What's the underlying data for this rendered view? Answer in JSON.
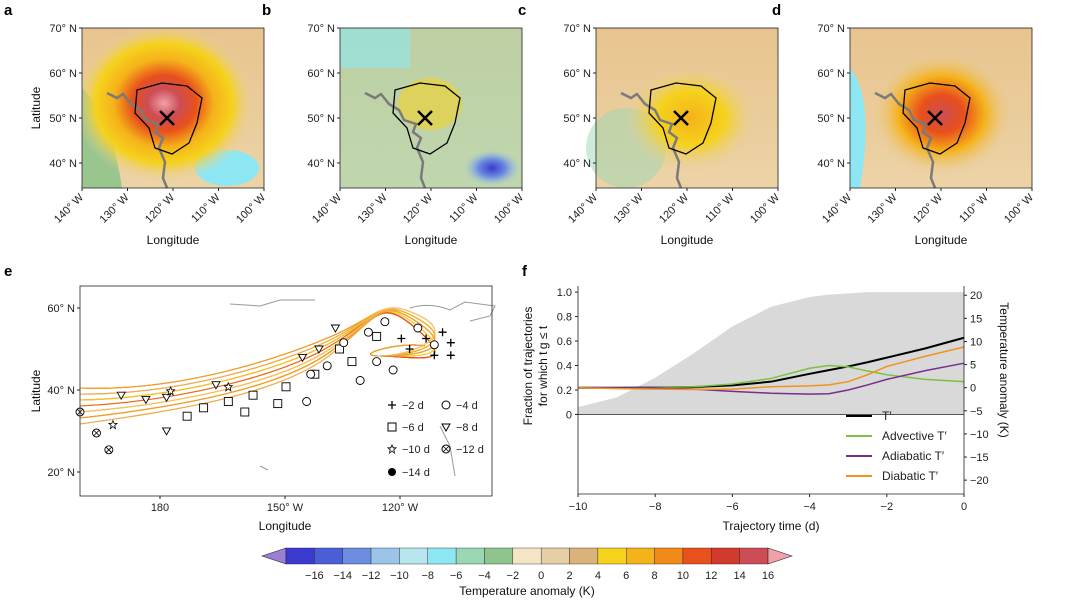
{
  "panels": {
    "map_tiles": [
      {
        "letter": "a",
        "yticks": [
          "70° N",
          "60° N",
          "50° N",
          "40° N"
        ],
        "xticks": [
          "140° W",
          "130° W",
          "120° W",
          "110° W",
          "100° W"
        ],
        "ylabel": "Latitude",
        "xlabel": "Longitude"
      },
      {
        "letter": "b",
        "yticks": [
          "70° N",
          "60° N",
          "50° N",
          "40° N"
        ],
        "xticks": [
          "140° W",
          "130° W",
          "120° W",
          "110° W",
          "100° W"
        ],
        "ylabel": "",
        "xlabel": "Longitude"
      },
      {
        "letter": "c",
        "yticks": [
          "70° N",
          "60° N",
          "50° N",
          "40° N"
        ],
        "xticks": [
          "140° W",
          "130° W",
          "120° W",
          "110° W",
          "100° W"
        ],
        "ylabel": "",
        "xlabel": "Longitude"
      },
      {
        "letter": "d",
        "yticks": [
          "70° N",
          "60° N",
          "50° N",
          "40° N"
        ],
        "xticks": [
          "140° W",
          "130° W",
          "120° W",
          "110° W",
          "100° W"
        ],
        "ylabel": "",
        "xlabel": "Longitude"
      }
    ],
    "e": {
      "letter": "e",
      "yticks": [
        "60° N",
        "40° N",
        "20° N"
      ],
      "xticks": [
        "180",
        "150° W",
        "120° W"
      ],
      "ylabel": "Latitude",
      "xlabel": "Longitude",
      "legend": [
        {
          "symbol": "plus",
          "label": "−2 d"
        },
        {
          "symbol": "circle",
          "label": "−4 d"
        },
        {
          "symbol": "square",
          "label": "−6 d"
        },
        {
          "symbol": "triangle-down",
          "label": "−8 d"
        },
        {
          "symbol": "star",
          "label": "−10 d"
        },
        {
          "symbol": "circle-x",
          "label": "−12 d"
        },
        {
          "symbol": "filled-circle",
          "label": "−14 d"
        }
      ]
    },
    "f": {
      "letter": "f"
    }
  },
  "colorbar": {
    "ticks": [
      "−16",
      "−14",
      "−12",
      "−10",
      "−8",
      "−6",
      "−4",
      "−2",
      "0",
      "2",
      "4",
      "6",
      "8",
      "10",
      "12",
      "14",
      "16"
    ],
    "label": "Temperature anomaly (K)",
    "colors": [
      "#9b7fd4",
      "#3a3acf",
      "#4a5ed8",
      "#6d8ee0",
      "#9cc3ea",
      "#b8e6ef",
      "#8de7f2",
      "#9ad8b4",
      "#8fc48c",
      "#f4e6c4",
      "#e6cfa4",
      "#d9b37a",
      "#f5d21c",
      "#f5b21a",
      "#f28a1a",
      "#e8501c",
      "#d13a2c",
      "#cc4d55",
      "#f0a0a8"
    ]
  },
  "chart_data": [
    {
      "type": "line",
      "panel": "f",
      "xlabel": "Trajectory time (d)",
      "ylabel_left": "Fraction of trajectories for which t_g ≤ t",
      "ylabel_right": "Temperature anomaly (K)",
      "xlim": [
        -10,
        0
      ],
      "xticks": [
        -10,
        -8,
        -6,
        -4,
        -2,
        0
      ],
      "ylim_left": [
        -0.65,
        1.05
      ],
      "yticks_left": [
        0,
        0.2,
        0.4,
        0.6,
        0.8,
        1.0
      ],
      "ylim_right": [
        -23,
        22
      ],
      "yticks_right": [
        20,
        15,
        10,
        5,
        0,
        -5,
        -10,
        -15,
        -20
      ],
      "x": [
        -10,
        -9,
        -8,
        -7,
        -6,
        -5,
        -4,
        -3.5,
        -3,
        -2.5,
        -2,
        -1,
        0
      ],
      "fraction_area": [
        0.06,
        0.14,
        0.3,
        0.5,
        0.72,
        0.88,
        0.96,
        0.98,
        0.99,
        1.0,
        1.0,
        1.0,
        1.0
      ],
      "series": [
        {
          "name": "T′",
          "color": "#000000",
          "values": [
            0.0,
            0.0,
            0.05,
            0.15,
            0.5,
            1.3,
            3.0,
            3.8,
            4.6,
            5.5,
            6.5,
            8.5,
            10.8
          ]
        },
        {
          "name": "Advective T′",
          "color": "#7cc242",
          "values": [
            0.0,
            0.0,
            0.05,
            0.2,
            0.8,
            2.0,
            4.2,
            4.8,
            4.5,
            3.6,
            2.8,
            1.8,
            1.3
          ]
        },
        {
          "name": "Adiabatic T′",
          "color": "#7b2c8f",
          "values": [
            0.0,
            0.0,
            -0.05,
            -0.3,
            -0.8,
            -1.2,
            -1.4,
            -1.3,
            -0.5,
            0.6,
            1.8,
            3.7,
            5.3
          ]
        },
        {
          "name": "Diabatic T′",
          "color": "#f2931c",
          "values": [
            0.0,
            -0.2,
            -0.3,
            -0.4,
            -0.3,
            0.2,
            0.4,
            0.6,
            1.3,
            2.8,
            4.6,
            6.8,
            8.8
          ]
        }
      ]
    }
  ]
}
